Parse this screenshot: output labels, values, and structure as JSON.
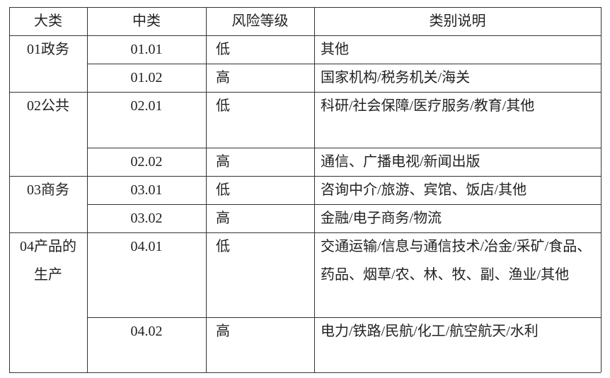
{
  "table": {
    "headers": [
      "大类",
      "中类",
      "风险等级",
      "类别说明"
    ],
    "groups": [
      {
        "category": "01政务",
        "rows": [
          {
            "code": "01.01",
            "risk": "低",
            "desc": "其他"
          },
          {
            "code": "01.02",
            "risk": "高",
            "desc": "国家机构/税务机关/海关"
          }
        ]
      },
      {
        "category": "02公共",
        "rows": [
          {
            "code": "02.01",
            "risk": "低",
            "desc": "科研/社会保障/医疗服务/教育/其他"
          },
          {
            "code": "02.02",
            "risk": "高",
            "desc": "通信、广播电视/新闻出版"
          }
        ]
      },
      {
        "category": "03商务",
        "rows": [
          {
            "code": "03.01",
            "risk": "低",
            "desc": "咨询中介/旅游、宾馆、饭店/其他"
          },
          {
            "code": "03.02",
            "risk": "高",
            "desc": "金融/电子商务/物流"
          }
        ]
      },
      {
        "category": "04产品的生产",
        "rows": [
          {
            "code": "04.01",
            "risk": "低",
            "desc": "交通运输/信息与通信技术/冶金/采矿/食品、药品、烟草/农、林、牧、副、渔业/其他"
          },
          {
            "code": "04.02",
            "risk": "高",
            "desc": "电力/铁路/民航/化工/航空航天/水利"
          }
        ]
      }
    ]
  }
}
